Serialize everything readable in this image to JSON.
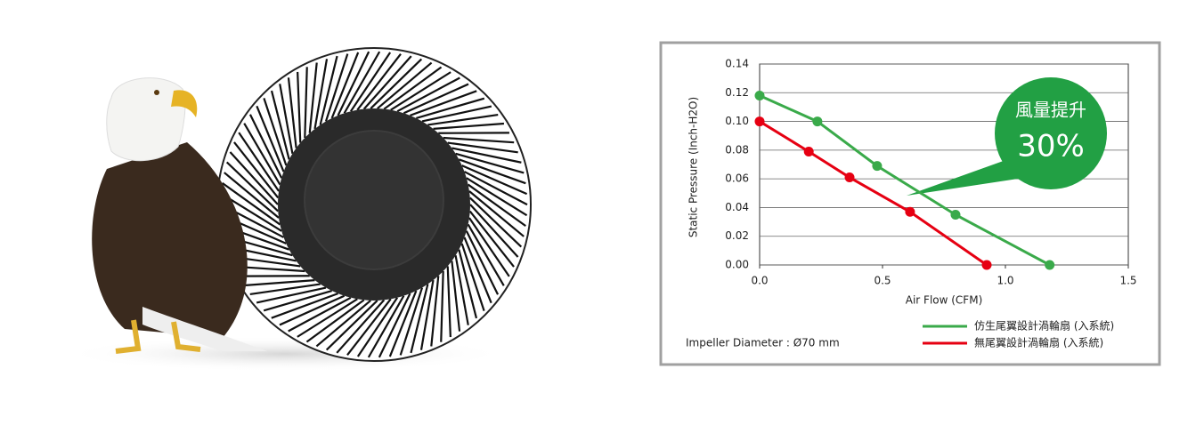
{
  "chart_data": {
    "type": "line",
    "ylabel": "Static Pressure (Inch-H2O)",
    "xlabel": "Air Flow (CFM)",
    "xlim": [
      0,
      1.5
    ],
    "xticks": [
      {
        "value": 0,
        "label": "0.0"
      },
      0.5,
      {
        "value": 1,
        "label": "1.0"
      },
      1.5
    ],
    "ylim": [
      0,
      0.14
    ],
    "yticks": [
      {
        "value": 0,
        "label": "0.00"
      },
      0.02,
      0.04,
      0.06,
      0.08,
      {
        "value": 0.1,
        "label": "0.10"
      },
      0.12,
      0.14
    ],
    "grid": true,
    "series": [
      {
        "name": "仿生尾翼設計渦輪扇 (入系統)",
        "color": "#3aaa4a",
        "x": [
          0,
          0.235,
          0.478,
          0.797,
          1.18
        ],
        "values": [
          0.118,
          0.1,
          0.069,
          0.035,
          0
        ]
      },
      {
        "name": "無尾翼設計渦輪扇 (入系統)",
        "color": "#e60012",
        "x": [
          0,
          0.2,
          0.366,
          0.612,
          0.924
        ],
        "values": [
          0.1,
          0.079,
          0.061,
          0.037,
          0
        ]
      }
    ],
    "annotation": {
      "title": "風量提升",
      "value": "30%",
      "color": "#22a044"
    },
    "note": "Impeller Diameter : Ø70 mm"
  }
}
